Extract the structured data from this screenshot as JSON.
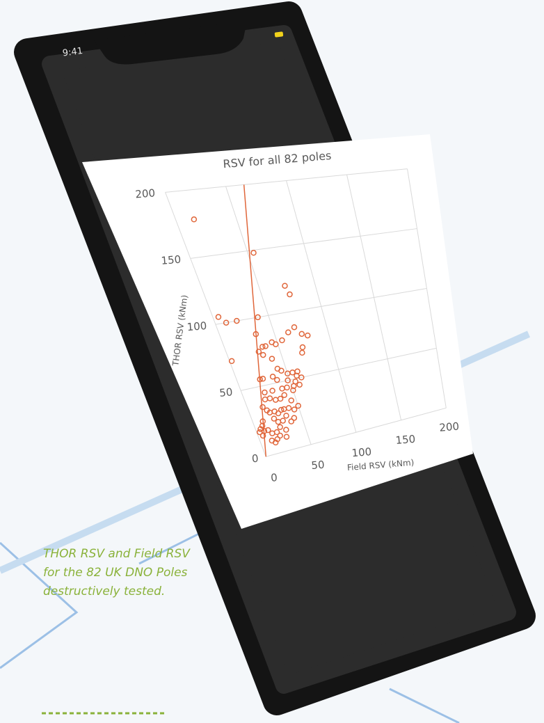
{
  "status_time": "9:41",
  "chart_data": {
    "type": "scatter",
    "title": "RSV for all 82 poles",
    "x_label": "Field RSV (kNm)",
    "y_label": "THOR RSV (kNm)",
    "x": [
      15,
      55,
      73,
      75,
      5,
      10,
      20,
      2,
      40,
      33,
      70,
      75,
      63,
      55,
      45,
      38,
      35,
      30,
      33,
      48,
      72,
      70,
      80,
      40,
      42,
      45,
      25,
      22,
      35,
      38,
      50,
      55,
      58,
      60,
      62,
      55,
      48,
      45,
      40,
      30,
      22,
      20,
      25,
      30,
      35,
      40,
      45,
      50,
      52,
      58,
      15,
      18,
      20,
      25,
      28,
      32,
      35,
      40,
      22,
      25,
      30,
      10,
      8,
      5,
      8,
      12,
      15,
      20,
      25,
      30,
      18,
      22,
      12,
      5,
      3,
      35,
      45,
      38,
      28,
      15,
      42,
      50
    ],
    "y": [
      178,
      148,
      120,
      113,
      105,
      100,
      100,
      72,
      100,
      88,
      88,
      82,
      85,
      80,
      80,
      78,
      78,
      75,
      72,
      78,
      72,
      68,
      80,
      68,
      60,
      58,
      55,
      55,
      55,
      52,
      55,
      55,
      52,
      55,
      50,
      48,
      50,
      45,
      45,
      45,
      45,
      40,
      40,
      38,
      38,
      40,
      35,
      42,
      45,
      45,
      35,
      32,
      30,
      30,
      28,
      30,
      30,
      30,
      25,
      22,
      22,
      25,
      22,
      20,
      18,
      18,
      15,
      15,
      18,
      15,
      10,
      12,
      10,
      15,
      18,
      25,
      28,
      20,
      10,
      8,
      22,
      30
    ],
    "color": "#e0663a",
    "xlim": [
      0,
      200
    ],
    "ylim": [
      0,
      200
    ],
    "xticks": [
      0,
      50,
      100,
      150,
      200
    ],
    "yticks": [
      0,
      50,
      100,
      150,
      200
    ],
    "grid": true,
    "trendline": {
      "x": [
        0,
        65
      ],
      "y": [
        0,
        200
      ]
    }
  },
  "caption": [
    "THOR RSV and Field RSV",
    "for the 82 UK DNO Poles",
    "destructively tested."
  ]
}
